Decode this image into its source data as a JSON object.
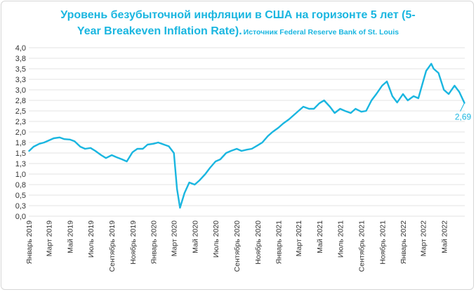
{
  "header": {
    "title_line1": "Уровень безубыточной инфляции в США на горизонте 5 лет (5-",
    "title_line2": "Year Breakeven Inflation Rate).",
    "source": "Источник Federal Reserve Bank of St. Louis"
  },
  "colors": {
    "line": "#1ab6e0",
    "grid": "#e3e3e3",
    "text": "#333333"
  },
  "chart_data": {
    "type": "line",
    "ylim": [
      0.0,
      4.0
    ],
    "yticks": [
      "0,0",
      "0,3",
      "0,5",
      "0,8",
      "1,0",
      "1,3",
      "1,5",
      "1,8",
      "2,0",
      "2,3",
      "2,5",
      "2,8",
      "3,0",
      "3,3",
      "3,5",
      "3,8",
      "4,0"
    ],
    "xticks": [
      "Январь 2019",
      "Март 2019",
      "Май 2019",
      "Июль 2019",
      "Сентябрь 2019",
      "Ноябрь 2019",
      "Январь 2020",
      "Март 2020",
      "Май 2020",
      "Июль 2020",
      "Сентябрь 2020",
      "Ноябрь 2020",
      "Январь 2021",
      "Март 2021",
      "Май 2021",
      "Июль 2021",
      "Сентябрь 2021",
      "Ноябрь 2021",
      "Январь 2022",
      "Март 2022",
      "Май 2022"
    ],
    "end_label": "2,69",
    "series": [
      {
        "x": [
          "2019-01-02",
          "2019-01-15",
          "2019-02-01",
          "2019-02-15",
          "2019-03-01",
          "2019-03-15",
          "2019-04-01",
          "2019-04-15",
          "2019-05-01",
          "2019-05-15",
          "2019-06-01",
          "2019-06-15",
          "2019-07-01",
          "2019-07-15",
          "2019-08-01",
          "2019-08-15",
          "2019-09-01",
          "2019-09-15",
          "2019-10-01",
          "2019-10-15",
          "2019-11-01",
          "2019-11-15",
          "2019-12-01",
          "2019-12-15",
          "2020-01-01",
          "2020-01-15",
          "2020-02-01",
          "2020-02-15",
          "2020-03-01",
          "2020-03-10",
          "2020-03-19",
          "2020-04-01",
          "2020-04-15",
          "2020-05-01",
          "2020-05-15",
          "2020-06-01",
          "2020-06-15",
          "2020-07-01",
          "2020-07-15",
          "2020-08-01",
          "2020-08-15",
          "2020-09-01",
          "2020-09-15",
          "2020-10-01",
          "2020-10-15",
          "2020-11-01",
          "2020-11-15",
          "2020-12-01",
          "2020-12-15",
          "2021-01-01",
          "2021-01-15",
          "2021-02-01",
          "2021-02-15",
          "2021-03-01",
          "2021-03-15",
          "2021-04-01",
          "2021-04-15",
          "2021-05-01",
          "2021-05-15",
          "2021-06-01",
          "2021-06-15",
          "2021-07-01",
          "2021-07-15",
          "2021-08-01",
          "2021-08-15",
          "2021-09-01",
          "2021-09-15",
          "2021-10-01",
          "2021-10-15",
          "2021-11-01",
          "2021-11-15",
          "2021-12-01",
          "2021-12-15",
          "2022-01-01",
          "2022-01-15",
          "2022-02-01",
          "2022-02-15",
          "2022-03-01",
          "2022-03-10",
          "2022-03-25",
          "2022-04-01",
          "2022-04-15",
          "2022-05-01",
          "2022-05-15",
          "2022-06-01",
          "2022-06-15",
          "2022-06-30"
        ],
        "y": [
          1.55,
          1.65,
          1.72,
          1.75,
          1.8,
          1.85,
          1.87,
          1.83,
          1.82,
          1.78,
          1.65,
          1.6,
          1.62,
          1.55,
          1.45,
          1.38,
          1.45,
          1.4,
          1.35,
          1.3,
          1.52,
          1.6,
          1.6,
          1.7,
          1.72,
          1.75,
          1.7,
          1.66,
          1.5,
          0.65,
          0.2,
          0.55,
          0.8,
          0.75,
          0.85,
          1.0,
          1.15,
          1.3,
          1.35,
          1.5,
          1.55,
          1.6,
          1.55,
          1.58,
          1.6,
          1.68,
          1.75,
          1.9,
          2.0,
          2.1,
          2.2,
          2.3,
          2.4,
          2.5,
          2.6,
          2.55,
          2.55,
          2.68,
          2.75,
          2.6,
          2.45,
          2.55,
          2.5,
          2.45,
          2.55,
          2.48,
          2.5,
          2.75,
          2.9,
          3.1,
          3.2,
          2.85,
          2.7,
          2.9,
          2.75,
          2.85,
          2.8,
          3.2,
          3.45,
          3.62,
          3.5,
          3.4,
          3.0,
          2.9,
          3.1,
          2.95,
          2.69
        ]
      }
    ]
  }
}
